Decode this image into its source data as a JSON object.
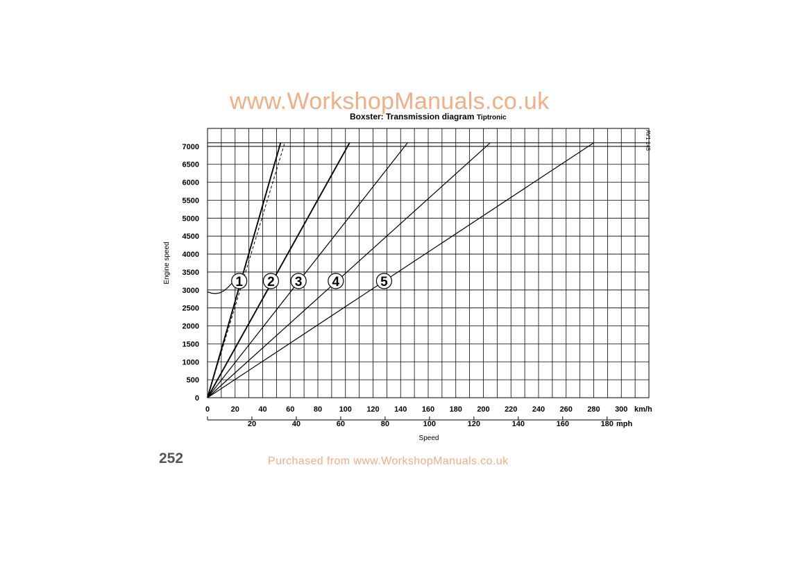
{
  "watermark_top": "www.WorkshopManuals.co.uk",
  "watermark_bottom": "Purchased from www.WorkshopManuals.co.uk",
  "page_number": "252",
  "colors": {
    "ink": "#000000",
    "watermark": "#f4ad84",
    "page_number": "#555555"
  },
  "chart_data": {
    "type": "line",
    "title": "Boxster: Transmission diagram",
    "subtitle": "Tiptronic",
    "figure_code": "AV1 143",
    "xlabel": "Speed",
    "ylabel": "Engine speed",
    "x_unit": "km/h",
    "x2_unit": "mph",
    "xlim": [
      0,
      320
    ],
    "ylim": [
      0,
      7500
    ],
    "grid": true,
    "x_ticks": [
      "0",
      "20",
      "40",
      "60",
      "80",
      "100",
      "120",
      "140",
      "160",
      "180",
      "200",
      "220",
      "240",
      "260",
      "280",
      "300"
    ],
    "x2_ticks": [
      "20",
      "40",
      "60",
      "80",
      "100",
      "120",
      "140",
      "160",
      "180"
    ],
    "y_ticks": [
      "0",
      "500",
      "1000",
      "1500",
      "2000",
      "2500",
      "3000",
      "3500",
      "4000",
      "4500",
      "5000",
      "5500",
      "6000",
      "6500",
      "7000"
    ],
    "limit_lines": [
      7000,
      7100
    ],
    "series": [
      {
        "name": "1",
        "style": "solid-bold",
        "x": [
          0,
          53
        ],
        "y": [
          0,
          7100
        ]
      },
      {
        "name": "2",
        "style": "solid-bold",
        "x": [
          0,
          103
        ],
        "y": [
          0,
          7100
        ]
      },
      {
        "name": "3",
        "style": "solid",
        "x": [
          0,
          145
        ],
        "y": [
          0,
          7100
        ]
      },
      {
        "name": "4",
        "style": "solid",
        "x": [
          0,
          205
        ],
        "y": [
          0,
          7100
        ]
      },
      {
        "name": "5",
        "style": "solid",
        "x": [
          0,
          280
        ],
        "y": [
          0,
          7100
        ]
      },
      {
        "style": "dashed",
        "x": [
          0,
          56
        ],
        "y": [
          0,
          7100
        ]
      },
      {
        "style": "curve",
        "x": [
          0,
          3,
          6,
          9,
          12,
          15,
          18,
          21
        ],
        "y": [
          2950,
          2910,
          2900,
          2920,
          2980,
          3080,
          3200,
          3330
        ]
      }
    ],
    "gear_labels": [
      {
        "text": "1",
        "x": 23,
        "y": 3250
      },
      {
        "text": "2",
        "x": 46,
        "y": 3250
      },
      {
        "text": "3",
        "x": 66,
        "y": 3250
      },
      {
        "text": "4",
        "x": 93,
        "y": 3250
      },
      {
        "text": "5",
        "x": 128,
        "y": 3250
      }
    ]
  }
}
